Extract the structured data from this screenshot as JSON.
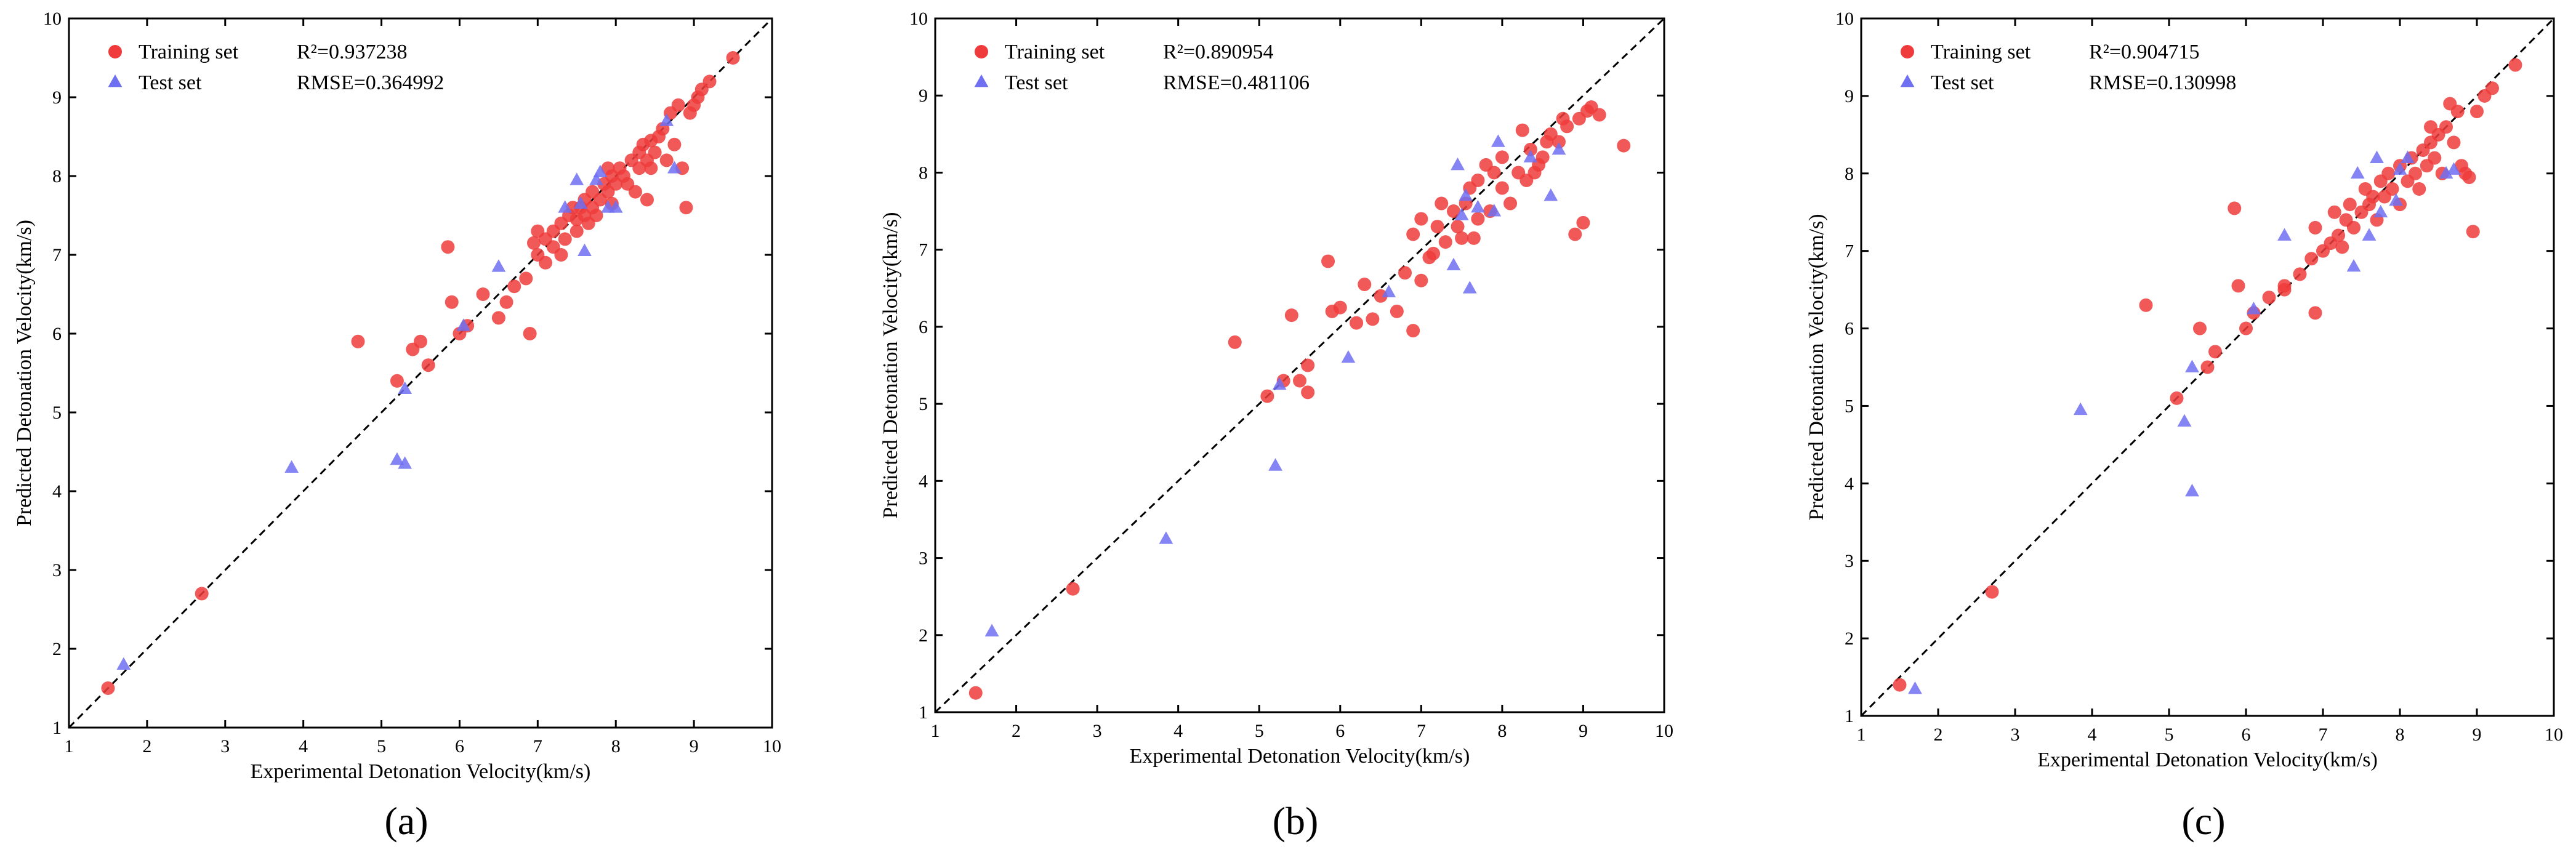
{
  "colors": {
    "train": "#ef3b3b",
    "test": "#6f6ff2"
  },
  "chart_data": [
    {
      "type": "scatter",
      "panel_label": "(a)",
      "title": "",
      "xlabel": "Experimental Detonation Velocity(km/s)",
      "ylabel": "Predicted Detonation Velocity(km/s)",
      "xlim": [
        1,
        10
      ],
      "ylim": [
        1,
        10
      ],
      "xticks": [
        "1",
        "2",
        "3",
        "4",
        "5",
        "6",
        "7",
        "8",
        "9",
        "10"
      ],
      "yticks": [
        "1",
        "2",
        "3",
        "4",
        "5",
        "6",
        "7",
        "8",
        "9",
        "10"
      ],
      "legend": {
        "train": "Training set",
        "test": "Test set"
      },
      "r2_text": "R²=0.937238",
      "rmse_text": "RMSE=0.364992",
      "series": [
        {
          "name": "Training set",
          "points": [
            [
              1.5,
              1.5
            ],
            [
              2.7,
              2.7
            ],
            [
              4.7,
              5.9
            ],
            [
              5.2,
              5.4
            ],
            [
              5.4,
              5.8
            ],
            [
              5.5,
              5.9
            ],
            [
              5.6,
              5.6
            ],
            [
              5.85,
              7.1
            ],
            [
              5.9,
              6.4
            ],
            [
              6.0,
              6.0
            ],
            [
              6.1,
              6.1
            ],
            [
              6.3,
              6.5
            ],
            [
              6.5,
              6.2
            ],
            [
              6.6,
              6.4
            ],
            [
              6.7,
              6.6
            ],
            [
              6.85,
              6.7
            ],
            [
              6.9,
              6.0
            ],
            [
              7.0,
              7.3
            ],
            [
              7.0,
              7.0
            ],
            [
              7.1,
              6.9
            ],
            [
              7.1,
              7.2
            ],
            [
              7.2,
              7.1
            ],
            [
              7.2,
              7.3
            ],
            [
              7.3,
              7.0
            ],
            [
              7.3,
              7.4
            ],
            [
              7.35,
              7.2
            ],
            [
              7.4,
              7.5
            ],
            [
              7.45,
              7.6
            ],
            [
              7.5,
              7.3
            ],
            [
              7.55,
              7.6
            ],
            [
              7.6,
              7.5
            ],
            [
              7.6,
              7.7
            ],
            [
              7.65,
              7.4
            ],
            [
              7.7,
              7.6
            ],
            [
              7.7,
              7.8
            ],
            [
              7.75,
              7.5
            ],
            [
              7.8,
              7.7
            ],
            [
              7.85,
              7.9
            ],
            [
              7.9,
              7.8
            ],
            [
              7.9,
              8.1
            ],
            [
              7.95,
              8.0
            ],
            [
              8.0,
              7.9
            ],
            [
              8.05,
              8.1
            ],
            [
              8.1,
              8.0
            ],
            [
              8.15,
              7.9
            ],
            [
              8.2,
              8.2
            ],
            [
              8.25,
              7.8
            ],
            [
              8.3,
              8.1
            ],
            [
              8.3,
              8.3
            ],
            [
              8.35,
              8.4
            ],
            [
              8.4,
              8.2
            ],
            [
              8.4,
              7.7
            ],
            [
              8.45,
              8.1
            ],
            [
              8.5,
              8.3
            ],
            [
              8.55,
              8.5
            ],
            [
              8.6,
              8.6
            ],
            [
              8.65,
              8.2
            ],
            [
              8.7,
              8.8
            ],
            [
              8.75,
              8.4
            ],
            [
              8.8,
              8.9
            ],
            [
              8.85,
              8.1
            ],
            [
              8.9,
              7.6
            ],
            [
              8.95,
              8.8
            ],
            [
              9.0,
              8.9
            ],
            [
              9.05,
              9.0
            ],
            [
              9.1,
              9.1
            ],
            [
              9.2,
              9.2
            ],
            [
              9.5,
              9.5
            ],
            [
              7.95,
              7.65
            ],
            [
              8.45,
              8.45
            ],
            [
              7.5,
              7.45
            ],
            [
              6.95,
              7.15
            ]
          ]
        },
        {
          "name": "Test set",
          "points": [
            [
              1.7,
              1.8
            ],
            [
              3.85,
              4.3
            ],
            [
              5.2,
              4.4
            ],
            [
              5.3,
              4.35
            ],
            [
              5.3,
              5.3
            ],
            [
              6.05,
              6.1
            ],
            [
              6.5,
              6.85
            ],
            [
              7.35,
              7.6
            ],
            [
              7.5,
              7.95
            ],
            [
              7.55,
              7.65
            ],
            [
              7.6,
              7.05
            ],
            [
              7.75,
              7.95
            ],
            [
              7.8,
              8.05
            ],
            [
              7.9,
              7.6
            ],
            [
              8.0,
              7.6
            ],
            [
              8.65,
              8.7
            ],
            [
              8.75,
              8.1
            ]
          ]
        }
      ]
    },
    {
      "type": "scatter",
      "panel_label": "(b)",
      "title": "",
      "xlabel": "Experimental Detonation Velocity(km/s)",
      "ylabel": "Predicted Detonation Velocity(km/s)",
      "xlim": [
        1,
        10
      ],
      "ylim": [
        1,
        10
      ],
      "xticks": [
        "1",
        "2",
        "3",
        "4",
        "5",
        "6",
        "7",
        "8",
        "9",
        "10"
      ],
      "yticks": [
        "1",
        "2",
        "3",
        "4",
        "5",
        "6",
        "7",
        "8",
        "9",
        "10"
      ],
      "legend": {
        "train": "Training set",
        "test": "Test set"
      },
      "r2_text": "R²=0.890954",
      "rmse_text": "RMSE=0.481106",
      "series": [
        {
          "name": "Training set",
          "points": [
            [
              1.5,
              1.25
            ],
            [
              2.7,
              2.6
            ],
            [
              4.7,
              5.8
            ],
            [
              5.1,
              5.1
            ],
            [
              5.3,
              5.3
            ],
            [
              5.4,
              6.15
            ],
            [
              5.5,
              5.3
            ],
            [
              5.6,
              5.15
            ],
            [
              5.6,
              5.5
            ],
            [
              5.85,
              6.85
            ],
            [
              5.9,
              6.2
            ],
            [
              6.0,
              6.25
            ],
            [
              6.2,
              6.05
            ],
            [
              6.4,
              6.1
            ],
            [
              6.5,
              6.4
            ],
            [
              6.7,
              6.2
            ],
            [
              6.8,
              6.7
            ],
            [
              6.9,
              5.95
            ],
            [
              6.9,
              7.2
            ],
            [
              7.0,
              6.6
            ],
            [
              7.0,
              7.4
            ],
            [
              7.1,
              6.9
            ],
            [
              7.2,
              7.3
            ],
            [
              7.25,
              7.6
            ],
            [
              7.3,
              7.1
            ],
            [
              7.4,
              7.5
            ],
            [
              7.5,
              7.15
            ],
            [
              7.55,
              7.6
            ],
            [
              7.6,
              7.8
            ],
            [
              7.7,
              7.4
            ],
            [
              7.7,
              7.9
            ],
            [
              7.8,
              8.1
            ],
            [
              7.85,
              7.5
            ],
            [
              7.9,
              8.0
            ],
            [
              8.0,
              7.8
            ],
            [
              8.0,
              8.2
            ],
            [
              8.1,
              7.6
            ],
            [
              8.2,
              8.0
            ],
            [
              8.3,
              7.9
            ],
            [
              8.35,
              8.3
            ],
            [
              8.4,
              8.0
            ],
            [
              8.45,
              8.1
            ],
            [
              8.5,
              8.2
            ],
            [
              8.55,
              8.4
            ],
            [
              8.6,
              8.5
            ],
            [
              8.7,
              8.4
            ],
            [
              8.75,
              8.7
            ],
            [
              8.8,
              8.6
            ],
            [
              8.9,
              7.2
            ],
            [
              8.95,
              8.7
            ],
            [
              9.0,
              7.35
            ],
            [
              9.05,
              8.8
            ],
            [
              9.1,
              8.85
            ],
            [
              9.2,
              8.75
            ],
            [
              9.5,
              8.35
            ],
            [
              7.15,
              6.95
            ],
            [
              7.65,
              7.15
            ],
            [
              8.25,
              8.55
            ],
            [
              6.3,
              6.55
            ],
            [
              7.45,
              7.3
            ]
          ]
        },
        {
          "name": "Test set",
          "points": [
            [
              1.7,
              2.05
            ],
            [
              3.85,
              3.25
            ],
            [
              5.2,
              4.2
            ],
            [
              5.25,
              5.25
            ],
            [
              6.1,
              5.6
            ],
            [
              6.6,
              6.45
            ],
            [
              7.4,
              6.8
            ],
            [
              7.45,
              8.1
            ],
            [
              7.5,
              7.45
            ],
            [
              7.55,
              7.7
            ],
            [
              7.6,
              6.5
            ],
            [
              7.7,
              7.55
            ],
            [
              7.9,
              7.5
            ],
            [
              7.95,
              8.4
            ],
            [
              8.35,
              8.2
            ],
            [
              8.6,
              7.7
            ],
            [
              8.7,
              8.3
            ]
          ]
        }
      ]
    },
    {
      "type": "scatter",
      "panel_label": "(c)",
      "title": "",
      "xlabel": "Experimental Detonation Velocity(km/s)",
      "ylabel": "Predicted Detonation Velocity(km/s)",
      "xlim": [
        1,
        10
      ],
      "ylim": [
        1,
        10
      ],
      "xticks": [
        "1",
        "2",
        "3",
        "4",
        "5",
        "6",
        "7",
        "8",
        "9",
        "10"
      ],
      "yticks": [
        "1",
        "2",
        "3",
        "4",
        "5",
        "6",
        "7",
        "8",
        "9",
        "10"
      ],
      "legend": {
        "train": "Training set",
        "test": "Test set"
      },
      "r2_text": "R²=0.904715",
      "rmse_text": "RMSE=0.130998",
      "series": [
        {
          "name": "Training set",
          "points": [
            [
              1.5,
              1.4
            ],
            [
              2.7,
              2.6
            ],
            [
              4.7,
              6.3
            ],
            [
              5.1,
              5.1
            ],
            [
              5.4,
              6.0
            ],
            [
              5.5,
              5.5
            ],
            [
              5.6,
              5.7
            ],
            [
              5.85,
              7.55
            ],
            [
              5.9,
              6.55
            ],
            [
              6.0,
              6.0
            ],
            [
              6.1,
              6.2
            ],
            [
              6.3,
              6.4
            ],
            [
              6.5,
              6.5
            ],
            [
              6.7,
              6.7
            ],
            [
              6.85,
              6.9
            ],
            [
              6.9,
              6.2
            ],
            [
              6.9,
              7.3
            ],
            [
              7.0,
              7.0
            ],
            [
              7.1,
              7.1
            ],
            [
              7.15,
              7.5
            ],
            [
              7.2,
              7.2
            ],
            [
              7.3,
              7.4
            ],
            [
              7.35,
              7.6
            ],
            [
              7.4,
              7.3
            ],
            [
              7.5,
              7.5
            ],
            [
              7.55,
              7.8
            ],
            [
              7.6,
              7.6
            ],
            [
              7.65,
              7.7
            ],
            [
              7.7,
              7.4
            ],
            [
              7.75,
              7.9
            ],
            [
              7.8,
              7.7
            ],
            [
              7.85,
              8.0
            ],
            [
              7.9,
              7.8
            ],
            [
              8.0,
              8.1
            ],
            [
              8.0,
              7.6
            ],
            [
              8.1,
              7.9
            ],
            [
              8.15,
              8.2
            ],
            [
              8.2,
              8.0
            ],
            [
              8.25,
              7.8
            ],
            [
              8.3,
              8.3
            ],
            [
              8.35,
              8.1
            ],
            [
              8.4,
              8.4
            ],
            [
              8.45,
              8.2
            ],
            [
              8.5,
              8.5
            ],
            [
              8.55,
              8.0
            ],
            [
              8.6,
              8.6
            ],
            [
              8.65,
              8.9
            ],
            [
              8.7,
              8.4
            ],
            [
              8.75,
              8.8
            ],
            [
              8.8,
              8.1
            ],
            [
              8.85,
              8.0
            ],
            [
              8.9,
              7.95
            ],
            [
              8.95,
              7.25
            ],
            [
              9.0,
              8.8
            ],
            [
              9.1,
              9.0
            ],
            [
              9.2,
              9.1
            ],
            [
              9.5,
              9.4
            ],
            [
              6.5,
              6.55
            ],
            [
              7.25,
              7.05
            ],
            [
              8.4,
              8.6
            ]
          ]
        },
        {
          "name": "Test set",
          "points": [
            [
              1.7,
              1.35
            ],
            [
              3.85,
              4.95
            ],
            [
              5.2,
              4.8
            ],
            [
              5.3,
              5.5
            ],
            [
              5.3,
              3.9
            ],
            [
              6.1,
              6.25
            ],
            [
              6.5,
              7.2
            ],
            [
              7.4,
              6.8
            ],
            [
              7.45,
              8.0
            ],
            [
              7.6,
              7.2
            ],
            [
              7.7,
              8.2
            ],
            [
              7.75,
              7.5
            ],
            [
              7.95,
              7.65
            ],
            [
              8.0,
              8.05
            ],
            [
              8.1,
              8.2
            ],
            [
              8.6,
              8.0
            ],
            [
              8.7,
              8.05
            ]
          ]
        }
      ]
    }
  ]
}
